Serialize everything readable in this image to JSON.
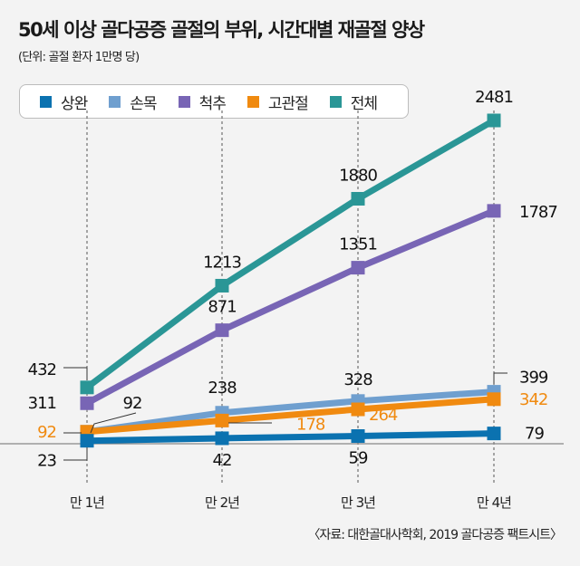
{
  "chart_data": {
    "type": "line",
    "title": "50세 이상 골다공증 골절의 부위, 시간대별 재골절 양상",
    "subtitle": "(단위: 골절 환자 1만명 당)",
    "categories": [
      "만 1년",
      "만 2년",
      "만 3년",
      "만 4년"
    ],
    "series": [
      {
        "name": "상완",
        "color": "#0b72b0",
        "values": [
          23,
          42,
          59,
          79
        ],
        "label_color": "#111111"
      },
      {
        "name": "손목",
        "color": "#6f9fcf",
        "values": [
          92,
          238,
          328,
          399
        ],
        "label_color": "#111111"
      },
      {
        "name": "척추",
        "color": "#7865b5",
        "values": [
          311,
          871,
          1351,
          1787
        ],
        "label_color": "#111111"
      },
      {
        "name": "고관절",
        "color": "#f08a10",
        "values": [
          92,
          178,
          264,
          342
        ],
        "label_color": "#f08a10"
      },
      {
        "name": "전체",
        "color": "#2a9696",
        "values": [
          432,
          1213,
          1880,
          2481
        ],
        "label_color": "#111111"
      }
    ],
    "xlabel": "",
    "ylabel": "",
    "ylim": [
      0,
      2481
    ],
    "grid": false,
    "legend_position": "top-left",
    "source": "〈자료: 대한골대사학회, 2019 골다공증 팩트시트〉"
  }
}
